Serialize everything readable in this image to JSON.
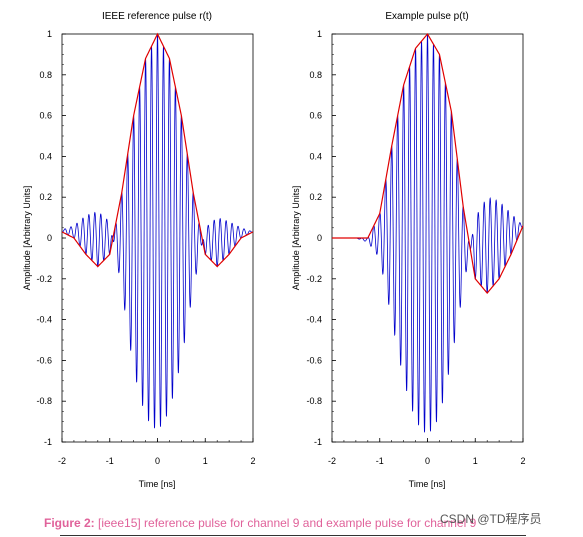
{
  "chart_data": [
    {
      "type": "line",
      "title": "IEEE reference pulse r(t)",
      "xlabel": "Time [ns]",
      "ylabel": "Amplitude [Arbitrary Units]",
      "xlim": [
        -2,
        2
      ],
      "ylim": [
        -1,
        1
      ],
      "x_ticks": [
        "-2",
        "-1",
        "0",
        "1",
        "2"
      ],
      "y_ticks": [
        "1",
        "0.8",
        "0.6",
        "0.4",
        "0.2",
        "0",
        "-0.2",
        "-0.4",
        "-0.6",
        "-0.8",
        "-1"
      ],
      "grid": false,
      "series": [
        {
          "color": "#0000cc",
          "x": [
            -2,
            -1.75,
            -1.5,
            -1.25,
            -1,
            -0.75,
            -0.5,
            -0.25,
            0,
            0.25,
            0.5,
            0.75,
            1,
            1.25,
            1.5,
            1.75,
            2
          ],
          "y": [
            0.04,
            0.06,
            0.11,
            0.13,
            0.08,
            -0.25,
            -0.65,
            -0.88,
            -0.95,
            -0.85,
            -0.6,
            -0.25,
            0.05,
            0.1,
            0.08,
            0.05,
            0.03
          ]
        },
        {
          "color": "#e00000",
          "x": [
            -2,
            -1.75,
            -1.5,
            -1.25,
            -1,
            -0.75,
            -0.5,
            -0.25,
            0,
            0.25,
            0.5,
            0.75,
            1,
            1.25,
            1.5,
            1.75,
            2
          ],
          "y": [
            0.03,
            0.0,
            -0.08,
            -0.14,
            -0.08,
            0.22,
            0.6,
            0.88,
            1.0,
            0.88,
            0.6,
            0.22,
            -0.08,
            -0.14,
            -0.08,
            0.0,
            0.03
          ]
        }
      ]
    },
    {
      "type": "line",
      "title": "Example pulse p(t)",
      "xlabel": "Time [ns]",
      "ylabel": "Amplitude [Arbitrary Units]",
      "xlim": [
        -2,
        2
      ],
      "ylim": [
        -1,
        1
      ],
      "x_ticks": [
        "-2",
        "-1",
        "0",
        "1",
        "2"
      ],
      "y_ticks": [
        "1",
        "0.8",
        "0.6",
        "0.4",
        "0.2",
        "0",
        "-0.2",
        "-0.4",
        "-0.6",
        "-0.8",
        "-1"
      ],
      "grid": false,
      "series": [
        {
          "color": "#0000cc",
          "x": [
            -2,
            -1.5,
            -1.25,
            -1,
            -0.75,
            -0.5,
            -0.25,
            0,
            0.25,
            0.5,
            0.75,
            1,
            1.25,
            1.5,
            1.75,
            2
          ],
          "y": [
            0,
            0,
            -0.02,
            -0.1,
            -0.4,
            -0.7,
            -0.9,
            -0.97,
            -0.88,
            -0.6,
            -0.25,
            0.1,
            0.2,
            0.18,
            0.12,
            0.06
          ]
        },
        {
          "color": "#e00000",
          "x": [
            -2,
            -1.5,
            -1.25,
            -1,
            -0.75,
            -0.5,
            -0.25,
            0,
            0.25,
            0.5,
            0.75,
            1,
            1.25,
            1.5,
            1.75,
            2
          ],
          "y": [
            0,
            0,
            0.0,
            0.12,
            0.45,
            0.75,
            0.93,
            1.0,
            0.9,
            0.62,
            0.15,
            -0.2,
            -0.27,
            -0.2,
            -0.08,
            0.06
          ]
        }
      ]
    }
  ],
  "caption": {
    "label": "Figure 2:",
    "text": " [ieee15] reference pulse for channel 9 and example pulse for channel 9"
  },
  "watermark": "CSDN @TD程序员"
}
